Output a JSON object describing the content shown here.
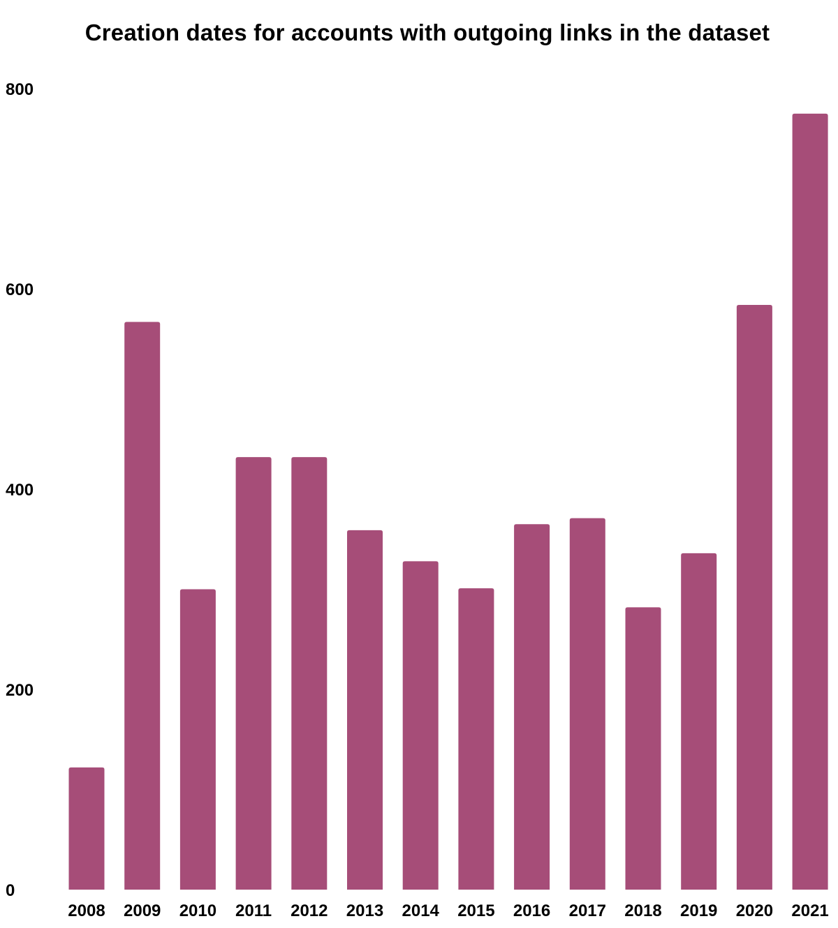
{
  "chart_data": {
    "type": "bar",
    "title": "Creation dates for accounts with outgoing links in the dataset",
    "xlabel": "",
    "ylabel": "",
    "categories": [
      "2008",
      "2009",
      "2010",
      "2011",
      "2012",
      "2013",
      "2014",
      "2015",
      "2016",
      "2017",
      "2018",
      "2019",
      "2020",
      "2021"
    ],
    "values": [
      122,
      567,
      300,
      432,
      432,
      359,
      328,
      301,
      365,
      371,
      282,
      336,
      584,
      775
    ],
    "ylim": [
      0,
      800
    ],
    "yticks": [
      "0",
      "200",
      "400",
      "600",
      "800"
    ],
    "grid": false,
    "legend": "none",
    "bar_color": "#a64d78"
  }
}
